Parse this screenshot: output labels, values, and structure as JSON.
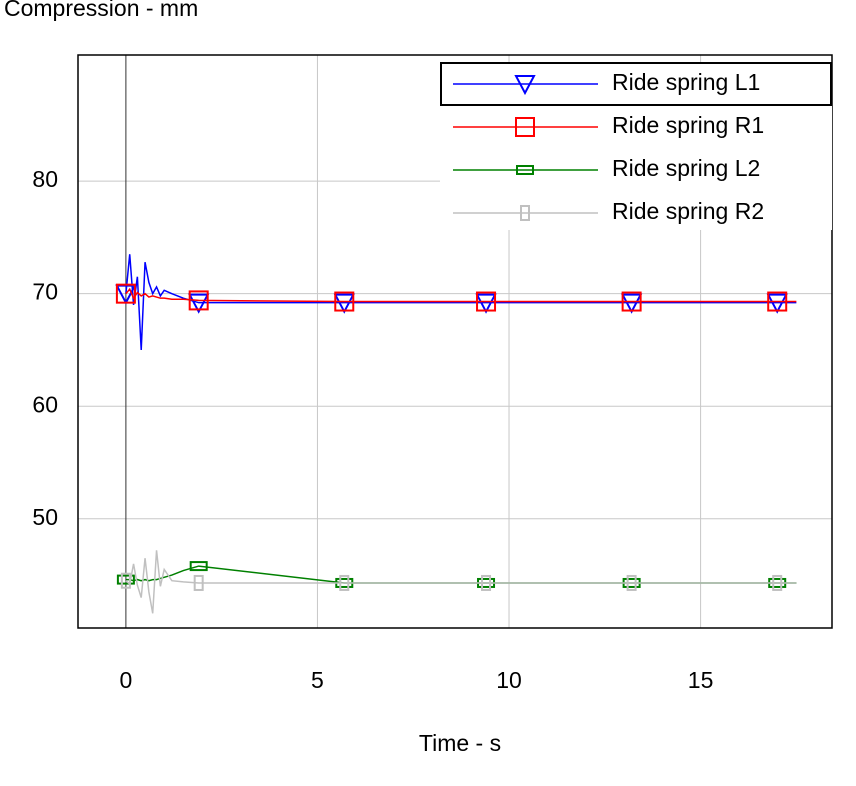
{
  "chart_data": {
    "type": "line",
    "title": "Compression - mm",
    "x_label": "Time - s",
    "x": [
      0,
      0.1,
      0.2,
      0.3,
      0.4,
      0.5,
      0.6,
      0.7,
      0.8,
      0.9,
      1.0,
      1.2,
      1.5,
      1.9,
      5.7,
      9.4,
      13.2,
      17,
      17.5
    ],
    "series": [
      {
        "name": "Ride spring L1",
        "color": "#0000ff",
        "marker": "triangle-down",
        "values": [
          70,
          73.5,
          69,
          71.5,
          65,
          72.8,
          71,
          70,
          70.6,
          69.8,
          70.3,
          70,
          69.6,
          69.2,
          69.2,
          69.2,
          69.2,
          69.2,
          69.2
        ]
      },
      {
        "name": "Ride spring R1",
        "color": "#ff0000",
        "marker": "square",
        "values": [
          70,
          70.4,
          69.6,
          70.1,
          69.8,
          70,
          69.7,
          69.8,
          69.7,
          69.6,
          69.6,
          69.5,
          69.5,
          69.4,
          69.3,
          69.3,
          69.3,
          69.3,
          69.3
        ]
      },
      {
        "name": "Ride spring L2",
        "color": "#008000",
        "marker": "hbar",
        "values": [
          44.6,
          44.6,
          44.5,
          44.6,
          44.5,
          44.6,
          44.5,
          44.6,
          44.6,
          44.7,
          44.8,
          45,
          45.4,
          45.8,
          44.3,
          44.3,
          44.3,
          44.3,
          44.3
        ]
      },
      {
        "name": "Ride spring R2",
        "color": "#c0c0c0",
        "marker": "vbar",
        "values": [
          44.5,
          44.2,
          46,
          44.1,
          43,
          46.5,
          43.5,
          41.6,
          47.2,
          44,
          45.5,
          44.5,
          44.4,
          44.3,
          44.3,
          44.3,
          44.3,
          44.3,
          44.3
        ]
      }
    ],
    "xlim": [
      -1.25,
      18.43
    ],
    "ylim": [
      40.3,
      91.2
    ],
    "xticks": [
      0,
      5,
      10,
      15
    ],
    "yticks": [
      50,
      60,
      70,
      80
    ],
    "grid": true,
    "legend": "upper right"
  }
}
